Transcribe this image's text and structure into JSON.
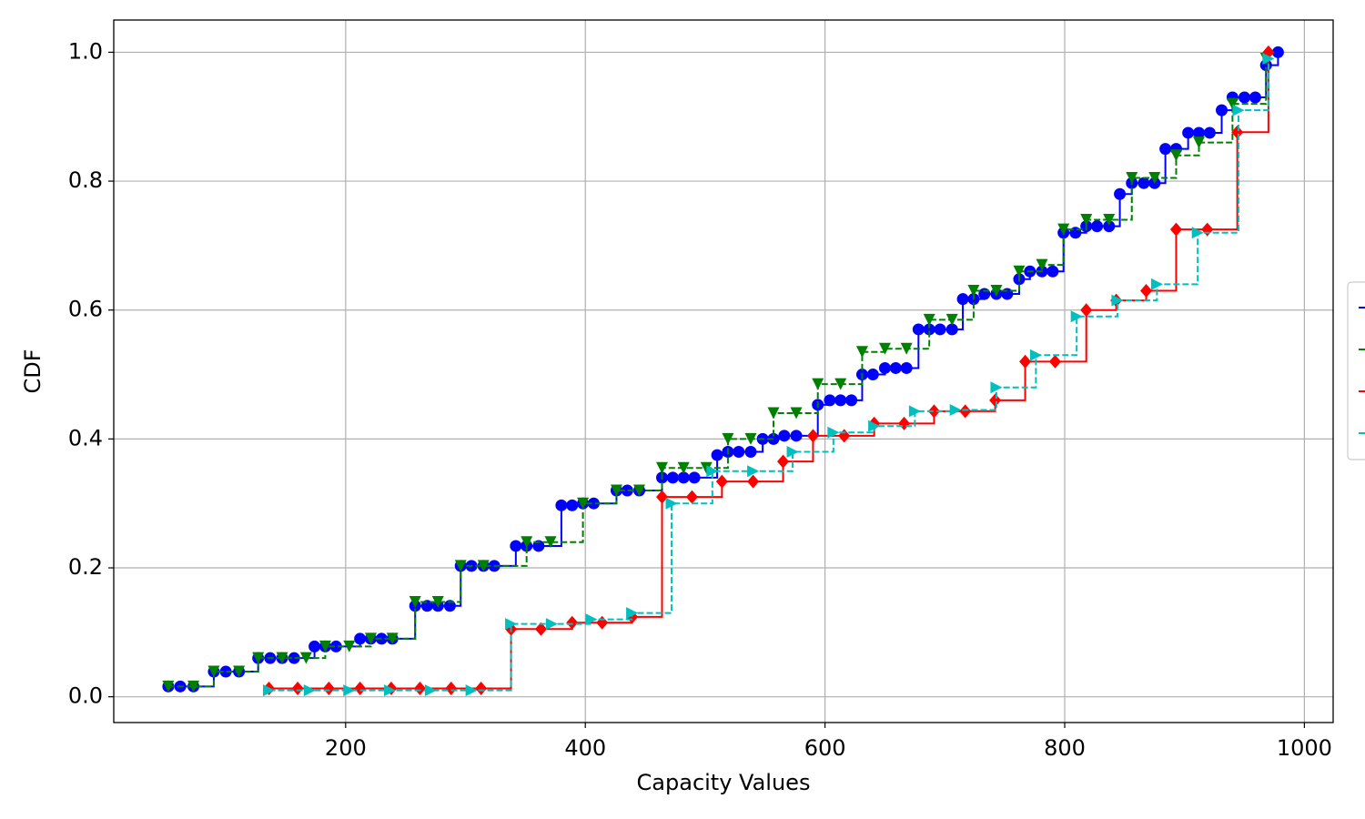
{
  "chart_data": {
    "type": "step",
    "x_label": "Capacity Values",
    "y_label": "CDF",
    "xlim": [
      6.5,
      1024
    ],
    "ylim": [
      -0.04,
      1.05
    ],
    "xticks": [
      200,
      400,
      600,
      800,
      1000
    ],
    "yticks": [
      {
        "value": 0,
        "label": "0.0"
      },
      0.2,
      0.4,
      0.6,
      0.8,
      {
        "value": 1,
        "label": "1.0"
      }
    ],
    "grid": true,
    "legend": "right",
    "series": [
      {
        "color": "#0000ff",
        "marker": "circle",
        "linestyle": "solid",
        "x": [
          52,
          62,
          73,
          90,
          100,
          111,
          127,
          137,
          147,
          157,
          174,
          183,
          192,
          212,
          221,
          230,
          239,
          258,
          268,
          277,
          287,
          296,
          305,
          315,
          324,
          342,
          351,
          361,
          380,
          389,
          398,
          407,
          426,
          435,
          445,
          464,
          473,
          482,
          491,
          510,
          519,
          528,
          538,
          548,
          557,
          566,
          576,
          594,
          604,
          613,
          622,
          631,
          640,
          650,
          659,
          668,
          678,
          687,
          696,
          706,
          715,
          724,
          733,
          743,
          752,
          762,
          771,
          781,
          790,
          799,
          809,
          818,
          827,
          837,
          846,
          856,
          866,
          875,
          884,
          893,
          903,
          912,
          921,
          931,
          940,
          950,
          959,
          968,
          978
        ],
        "values": [
          0.016,
          0.016,
          0.016,
          0.039,
          0.039,
          0.039,
          0.06,
          0.06,
          0.06,
          0.06,
          0.078,
          0.078,
          0.078,
          0.09,
          0.09,
          0.09,
          0.09,
          0.141,
          0.141,
          0.141,
          0.141,
          0.203,
          0.203,
          0.203,
          0.203,
          0.234,
          0.234,
          0.234,
          0.297,
          0.297,
          0.3,
          0.3,
          0.32,
          0.32,
          0.32,
          0.34,
          0.34,
          0.34,
          0.34,
          0.375,
          0.38,
          0.38,
          0.38,
          0.4,
          0.4,
          0.405,
          0.405,
          0.453,
          0.46,
          0.46,
          0.46,
          0.5,
          0.5,
          0.51,
          0.51,
          0.51,
          0.57,
          0.57,
          0.57,
          0.57,
          0.617,
          0.617,
          0.625,
          0.625,
          0.625,
          0.648,
          0.66,
          0.66,
          0.66,
          0.72,
          0.72,
          0.73,
          0.73,
          0.73,
          0.78,
          0.797,
          0.797,
          0.797,
          0.85,
          0.85,
          0.875,
          0.875,
          0.875,
          0.91,
          0.93,
          0.93,
          0.93,
          0.98,
          1.0
        ]
      },
      {
        "color": "#008000",
        "marker": "triangle-down",
        "linestyle": "dashed",
        "x": [
          52,
          73,
          90,
          111,
          127,
          147,
          167,
          183,
          203,
          221,
          239,
          258,
          277,
          296,
          315,
          351,
          371,
          398,
          426,
          445,
          464,
          482,
          501,
          519,
          538,
          557,
          576,
          594,
          613,
          631,
          650,
          668,
          687,
          706,
          724,
          743,
          762,
          781,
          799,
          818,
          837,
          856,
          875,
          893,
          912,
          940,
          968
        ],
        "values": [
          0.016,
          0.016,
          0.039,
          0.039,
          0.06,
          0.06,
          0.06,
          0.078,
          0.078,
          0.09,
          0.09,
          0.147,
          0.147,
          0.203,
          0.203,
          0.24,
          0.24,
          0.3,
          0.32,
          0.32,
          0.355,
          0.355,
          0.355,
          0.4,
          0.4,
          0.44,
          0.44,
          0.485,
          0.485,
          0.535,
          0.54,
          0.54,
          0.585,
          0.585,
          0.63,
          0.63,
          0.66,
          0.67,
          0.725,
          0.74,
          0.74,
          0.805,
          0.805,
          0.84,
          0.86,
          0.92,
          0.99
        ]
      },
      {
        "color": "#ff0000",
        "marker": "diamond",
        "linestyle": "solid",
        "x": [
          136,
          160,
          186,
          212,
          238,
          262,
          288,
          313,
          338,
          363,
          389,
          414,
          439,
          464,
          489,
          514,
          540,
          565,
          590,
          616,
          641,
          666,
          691,
          717,
          742,
          767,
          792,
          818,
          843,
          868,
          893,
          919,
          944,
          970
        ],
        "values": [
          0.013,
          0.013,
          0.013,
          0.013,
          0.013,
          0.013,
          0.013,
          0.013,
          0.105,
          0.105,
          0.115,
          0.115,
          0.124,
          0.31,
          0.31,
          0.334,
          0.334,
          0.365,
          0.405,
          0.405,
          0.424,
          0.424,
          0.443,
          0.443,
          0.46,
          0.52,
          0.52,
          0.6,
          0.615,
          0.63,
          0.725,
          0.725,
          0.876,
          1.0
        ]
      },
      {
        "color": "#00bfbf",
        "marker": "triangle-right",
        "linestyle": "dashed",
        "x": [
          136,
          170,
          203,
          237,
          271,
          305,
          338,
          372,
          405,
          439,
          472,
          506,
          540,
          573,
          607,
          641,
          675,
          709,
          743,
          776,
          810,
          844,
          877,
          911,
          945,
          970
        ],
        "values": [
          0.01,
          0.01,
          0.01,
          0.01,
          0.01,
          0.01,
          0.113,
          0.113,
          0.12,
          0.13,
          0.3,
          0.35,
          0.35,
          0.38,
          0.41,
          0.42,
          0.443,
          0.445,
          0.48,
          0.53,
          0.59,
          0.615,
          0.64,
          0.72,
          0.91,
          0.99
        ]
      }
    ]
  }
}
